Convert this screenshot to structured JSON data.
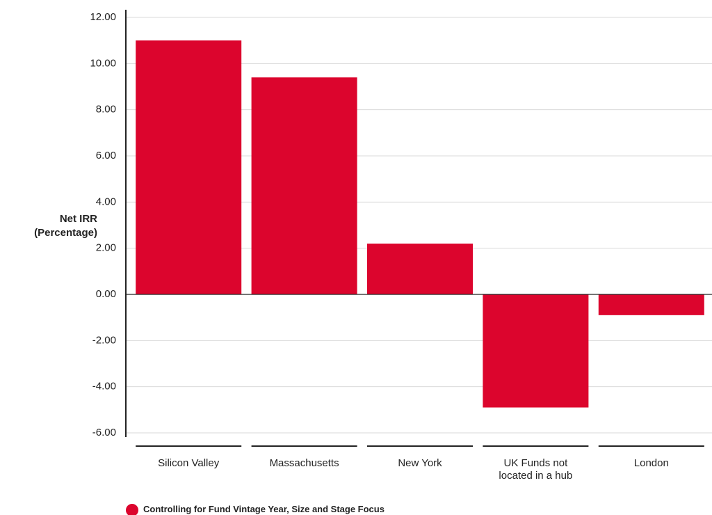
{
  "chart_data": {
    "type": "bar",
    "y_axis_label": "Net IRR (Percentage)",
    "categories": [
      "Silicon Valley",
      "Massachusetts",
      "New York",
      "UK Funds not located in a hub",
      "London"
    ],
    "series": [
      {
        "name": "Controlling for Fund Vintage Year, Size and Stage Focus",
        "color": "#dc052d",
        "values": [
          11.0,
          9.4,
          2.2,
          -4.9,
          -0.9
        ]
      }
    ],
    "ylim": [
      -6,
      12
    ],
    "yticks": [
      {
        "value": -6,
        "label": "-6.00"
      },
      {
        "value": -4,
        "label": "-4.00"
      },
      {
        "value": -2,
        "label": "-2.00"
      },
      {
        "value": 0,
        "label": "0.00"
      },
      {
        "value": 2,
        "label": "2.00"
      },
      {
        "value": 4,
        "label": "4.00"
      },
      {
        "value": 6,
        "label": "6.00"
      },
      {
        "value": 8,
        "label": "8.00"
      },
      {
        "value": 10,
        "label": "10.00"
      },
      {
        "value": 12,
        "label": "12.00"
      }
    ],
    "grid": true
  }
}
